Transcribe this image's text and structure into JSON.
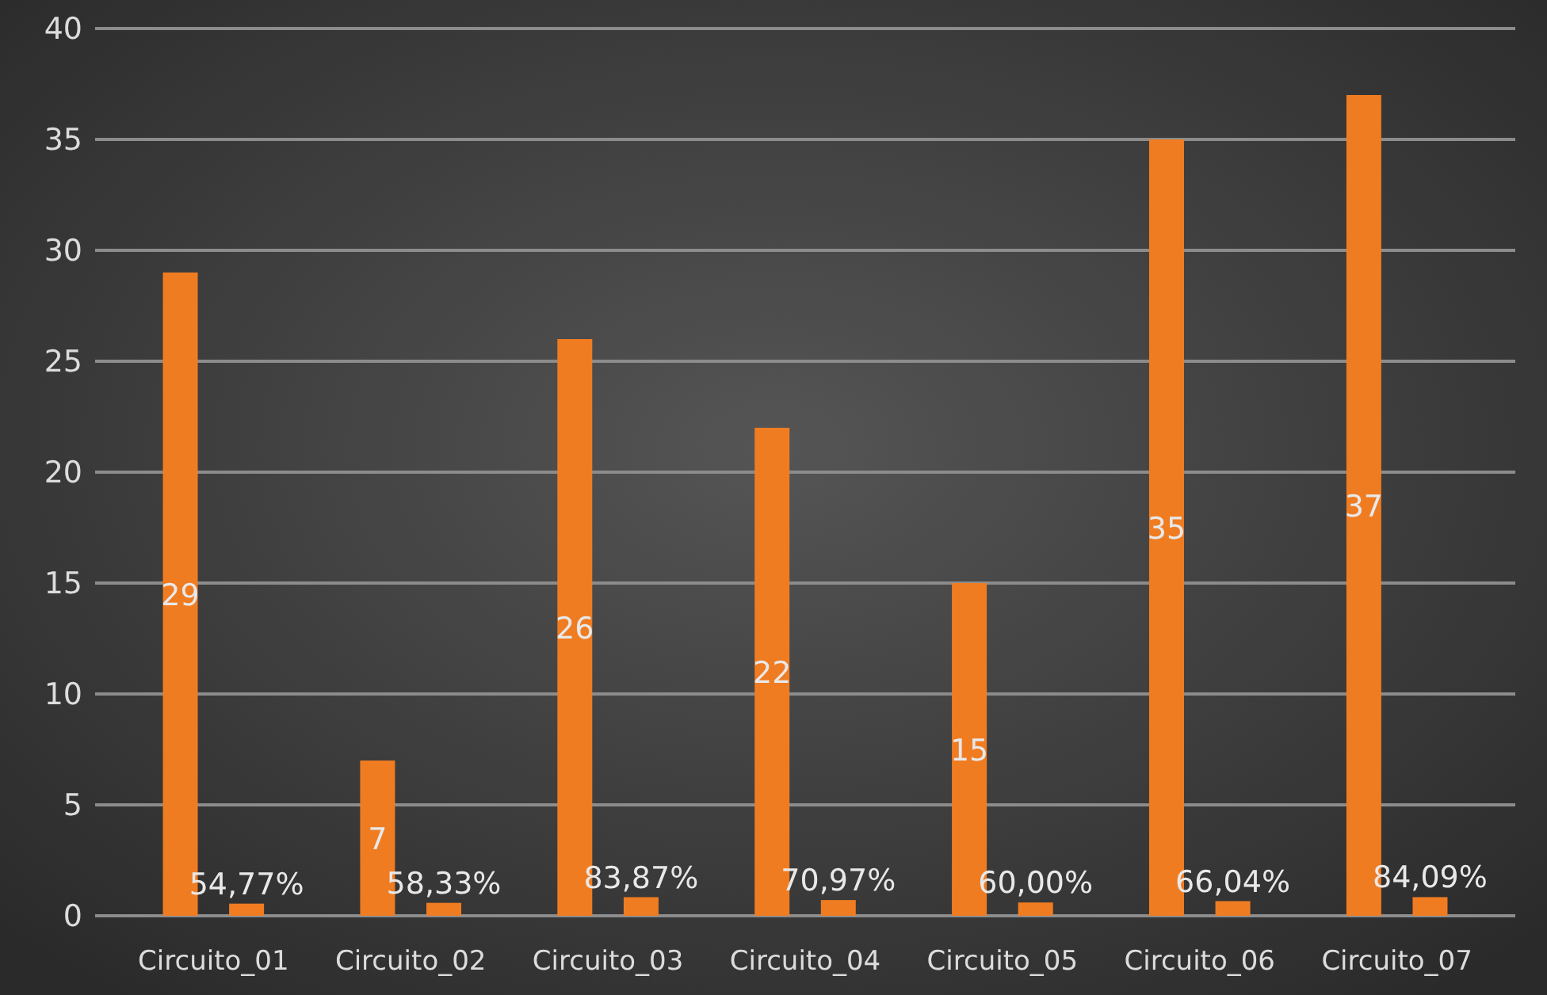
{
  "chart_data": {
    "type": "bar",
    "categories": [
      "Circuito_01",
      "Circuito_02",
      "Circuito_03",
      "Circuito_04",
      "Circuito_05",
      "Circuito_06",
      "Circuito_07"
    ],
    "series": [
      {
        "color": "#f07c22",
        "values": [
          29,
          7,
          26,
          22,
          15,
          35,
          37
        ],
        "value_labels": [
          "29",
          "7",
          "26",
          "22",
          "15",
          "35",
          "37"
        ]
      },
      {
        "color": "#f07c22",
        "values": [
          0.5477,
          0.5833,
          0.8387,
          0.7097,
          0.6,
          0.6604,
          0.8409
        ],
        "value_labels": [
          "54,77%",
          "58,33%",
          "83,87%",
          "70,97%",
          "60,00%",
          "66,04%",
          "84,09%"
        ]
      }
    ],
    "ylim": [
      0,
      40
    ],
    "yticks": [
      0,
      5,
      10,
      15,
      20,
      25,
      30,
      35,
      40
    ],
    "grid": "y"
  }
}
